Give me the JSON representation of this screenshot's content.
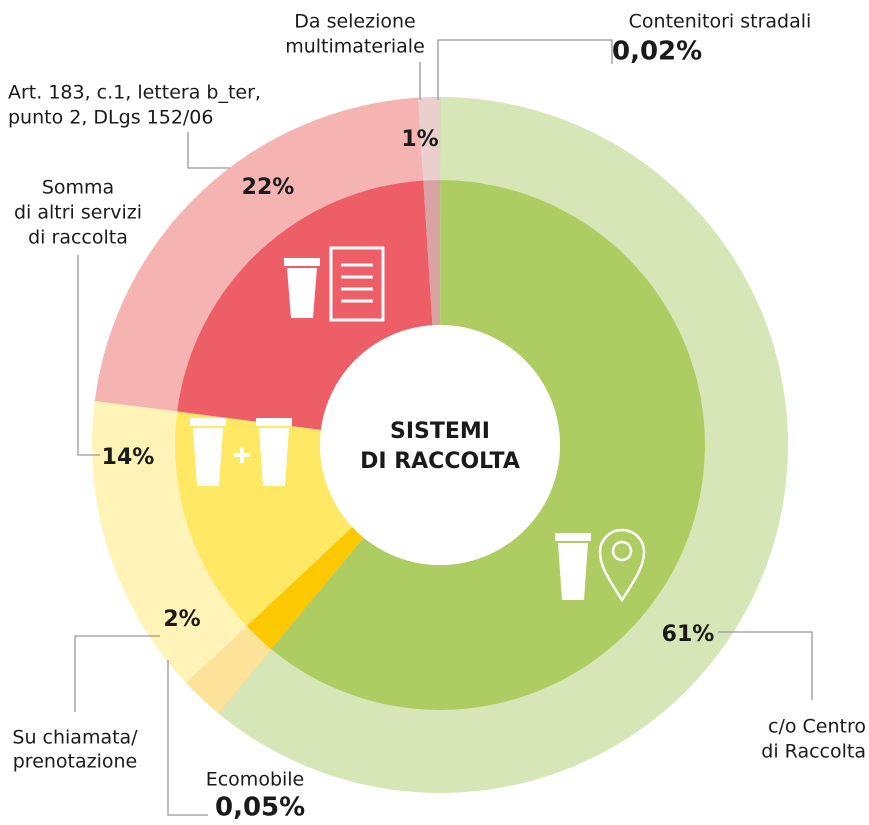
{
  "chart_data": {
    "type": "donut",
    "center_label": [
      "SISTEMI",
      "DI RACCOLTA"
    ],
    "categories": [
      [
        "Contenitori stradali"
      ],
      [
        "c/o Centro",
        "di Raccolta"
      ],
      [
        "Ecomobile"
      ],
      [
        "Su chiamata/",
        "prenotazione"
      ],
      [
        "Somma",
        "di altri servizi",
        "di raccolta"
      ],
      [
        "Art. 183, c.1, lettera b_ter,",
        "punto 2, DLgs 152/06"
      ],
      [
        "Da selezione",
        "multimateriale"
      ]
    ],
    "values": [
      0.02,
      61,
      0.05,
      2,
      14,
      22,
      1
    ],
    "value_labels": [
      "0,02%",
      "61%",
      "0,05%",
      "2%",
      "14%",
      "22%",
      "1%"
    ],
    "colors": [
      "#8fb35a",
      "#adcd62",
      "#e8b800",
      "#fcc800",
      "#ffe863",
      "#ee5e66",
      "#d9a3a3"
    ],
    "outer_colors": [
      "#bcd69a",
      "#d6e6b6",
      "#f6dc80",
      "#fde39a",
      "#fff3b8",
      "#f5b4b1",
      "#ebcfcf"
    ]
  }
}
